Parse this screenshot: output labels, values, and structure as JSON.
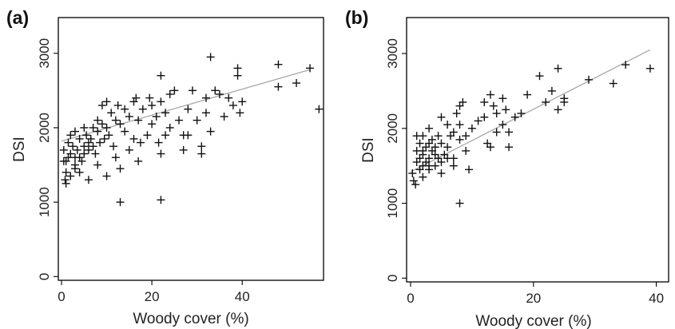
{
  "chart_data": [
    {
      "type": "scatter",
      "panel_label": "(a)",
      "xlabel": "Woody cover (%)",
      "ylabel": "DSI",
      "xlim": [
        0,
        58
      ],
      "ylim": [
        -50,
        3480
      ],
      "x_ticks": [
        0,
        20,
        40
      ],
      "y_ticks": [
        0,
        1000,
        2000,
        3000
      ],
      "x_tick_labels": [
        "0",
        "20",
        "40"
      ],
      "y_tick_labels": [
        "0",
        "1000",
        "2000",
        "3000"
      ],
      "grid": false,
      "marker": "+",
      "trend_line": {
        "x": [
          0,
          55
        ],
        "y": [
          1820,
          2780
        ]
      },
      "points": [
        [
          0.5,
          1700
        ],
        [
          1,
          1550
        ],
        [
          1,
          1400
        ],
        [
          0.8,
          1300
        ],
        [
          1.5,
          1800
        ],
        [
          2,
          1900
        ],
        [
          2,
          1650
        ],
        [
          2.5,
          1750
        ],
        [
          3,
          1600
        ],
        [
          3,
          1500
        ],
        [
          3,
          1950
        ],
        [
          3.5,
          1700
        ],
        [
          4,
          1850
        ],
        [
          4,
          1600
        ],
        [
          4.5,
          1550
        ],
        [
          5,
          1750
        ],
        [
          5,
          1650
        ],
        [
          5,
          2000
        ],
        [
          5.5,
          1900
        ],
        [
          6,
          1800
        ],
        [
          6,
          1700
        ],
        [
          6.5,
          1850
        ],
        [
          7,
          1750
        ],
        [
          7,
          2000
        ],
        [
          7.5,
          1650
        ],
        [
          8,
          2100
        ],
        [
          8,
          1950
        ],
        [
          8.5,
          1800
        ],
        [
          9,
          2300
        ],
        [
          9,
          2050
        ],
        [
          9.5,
          1850
        ],
        [
          10,
          2350
        ],
        [
          10,
          2000
        ],
        [
          10.5,
          1900
        ],
        [
          11,
          2200
        ],
        [
          11.5,
          1750
        ],
        [
          12,
          2100
        ],
        [
          12,
          1600
        ],
        [
          12.5,
          2300
        ],
        [
          13,
          2050
        ],
        [
          13,
          1450
        ],
        [
          13,
          1000
        ],
        [
          14,
          2250
        ],
        [
          14,
          1950
        ],
        [
          15,
          1700
        ],
        [
          15,
          2150
        ],
        [
          16,
          2350
        ],
        [
          16,
          1850
        ],
        [
          16.5,
          2400
        ],
        [
          17,
          2100
        ],
        [
          17,
          1550
        ],
        [
          17.5,
          1800
        ],
        [
          18,
          2250
        ],
        [
          19,
          1900
        ],
        [
          19.5,
          2400
        ],
        [
          20,
          2050
        ],
        [
          20,
          2300
        ],
        [
          21,
          2150
        ],
        [
          21.5,
          1800
        ],
        [
          22,
          2700
        ],
        [
          22,
          2350
        ],
        [
          22,
          1650
        ],
        [
          22,
          1030
        ],
        [
          23,
          2200
        ],
        [
          23,
          1900
        ],
        [
          24,
          2450
        ],
        [
          24,
          2000
        ],
        [
          25,
          2500
        ],
        [
          26,
          2100
        ],
        [
          27,
          1700
        ],
        [
          27,
          1900
        ],
        [
          28,
          2250
        ],
        [
          28,
          1900
        ],
        [
          29,
          2500
        ],
        [
          30,
          2100
        ],
        [
          31,
          1750
        ],
        [
          31,
          1650
        ],
        [
          32,
          2400
        ],
        [
          32,
          2200
        ],
        [
          33,
          2950
        ],
        [
          33,
          1950
        ],
        [
          34,
          2500
        ],
        [
          35,
          2450
        ],
        [
          36,
          2150
        ],
        [
          37,
          2400
        ],
        [
          38,
          2300
        ],
        [
          39,
          2800
        ],
        [
          39,
          2700
        ],
        [
          40,
          2350
        ],
        [
          39.5,
          2200
        ],
        [
          48,
          2850
        ],
        [
          48,
          2550
        ],
        [
          52,
          2600
        ],
        [
          55,
          2800
        ],
        [
          57,
          2250
        ],
        [
          2,
          1350
        ],
        [
          4,
          1400
        ],
        [
          6,
          1300
        ],
        [
          1.5,
          1600
        ],
        [
          3,
          1450
        ],
        [
          8,
          1500
        ],
        [
          10,
          1350
        ],
        [
          0.5,
          1550
        ],
        [
          1,
          1250
        ]
      ]
    },
    {
      "type": "scatter",
      "panel_label": "(b)",
      "xlabel": "Woody cover (%)",
      "ylabel": "DSI",
      "xlim": [
        0,
        42
      ],
      "ylim": [
        -50,
        3480
      ],
      "x_ticks": [
        0,
        20,
        40
      ],
      "y_ticks": [
        0,
        1000,
        2000,
        3000
      ],
      "x_tick_labels": [
        "0",
        "20",
        "40"
      ],
      "y_tick_labels": [
        "0",
        "1000",
        "2000",
        "3000"
      ],
      "grid": false,
      "marker": "+",
      "trend_line": {
        "x": [
          0,
          39
        ],
        "y": [
          1420,
          3050
        ]
      },
      "points": [
        [
          0.3,
          1400
        ],
        [
          0.5,
          1300
        ],
        [
          0.8,
          1250
        ],
        [
          1,
          1700
        ],
        [
          1,
          1550
        ],
        [
          1.5,
          1800
        ],
        [
          1.5,
          1450
        ],
        [
          2,
          1650
        ],
        [
          2,
          1900
        ],
        [
          2,
          1350
        ],
        [
          2.5,
          1750
        ],
        [
          2.5,
          1550
        ],
        [
          3,
          2000
        ],
        [
          3,
          1600
        ],
        [
          3,
          1450
        ],
        [
          3.5,
          1850
        ],
        [
          3.5,
          1700
        ],
        [
          4,
          1750
        ],
        [
          4,
          1500
        ],
        [
          4.5,
          1900
        ],
        [
          4.5,
          1600
        ],
        [
          5,
          1800
        ],
        [
          5,
          2150
        ],
        [
          5,
          1400
        ],
        [
          5.5,
          1650
        ],
        [
          6,
          2050
        ],
        [
          6,
          1750
        ],
        [
          6.5,
          1900
        ],
        [
          7,
          1600
        ],
        [
          7,
          1500
        ],
        [
          7.5,
          2200
        ],
        [
          8,
          2300
        ],
        [
          8,
          2050
        ],
        [
          8,
          1850
        ],
        [
          8,
          1000
        ],
        [
          8.5,
          2350
        ],
        [
          9,
          1900
        ],
        [
          9,
          1700
        ],
        [
          9.5,
          1450
        ],
        [
          10,
          2000
        ],
        [
          11,
          2100
        ],
        [
          12,
          2350
        ],
        [
          12,
          2150
        ],
        [
          12.5,
          1800
        ],
        [
          13,
          2450
        ],
        [
          13,
          1750
        ],
        [
          13.5,
          2300
        ],
        [
          14,
          2200
        ],
        [
          14,
          1950
        ],
        [
          15,
          2400
        ],
        [
          15,
          2050
        ],
        [
          15.5,
          2250
        ],
        [
          16,
          1950
        ],
        [
          16,
          1750
        ],
        [
          17,
          2150
        ],
        [
          18,
          2200
        ],
        [
          19,
          2450
        ],
        [
          21,
          2700
        ],
        [
          22,
          2350
        ],
        [
          23,
          2500
        ],
        [
          24,
          2800
        ],
        [
          24,
          2250
        ],
        [
          25,
          2400
        ],
        [
          25,
          2350
        ],
        [
          29,
          2650
        ],
        [
          33,
          2600
        ],
        [
          35,
          2850
        ],
        [
          39,
          2800
        ],
        [
          1,
          1900
        ],
        [
          2,
          1700
        ],
        [
          3,
          1800
        ],
        [
          4,
          1650
        ],
        [
          5,
          1550
        ],
        [
          6,
          1600
        ],
        [
          7,
          1950
        ],
        [
          2,
          1500
        ],
        [
          1.5,
          1600
        ],
        [
          3,
          1500
        ]
      ]
    }
  ]
}
